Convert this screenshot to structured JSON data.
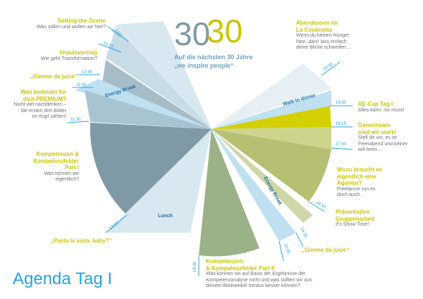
{
  "logo": {
    "left": "30",
    "right": "30"
  },
  "tagline": {
    "line1": "Auf die nächsten 30 Jahre",
    "line2": "„we inspire people“"
  },
  "agenda_title": "Agenda Tag I",
  "colors": {
    "gray_blue": "#7f9aa6",
    "light_blue": "#a9cde0",
    "pale_blue": "#d7e8f1",
    "olive": "#b7bf73",
    "olive_light": "#cfd48c",
    "sage": "#9bb289",
    "lime": "#d4d000",
    "yellow_title": "#c9c400",
    "accent_blue": "#29a3dc"
  },
  "times": [
    "10:00",
    "10:15",
    "10:45",
    "11:00",
    "11:30",
    "13:00",
    "14:30",
    "16:05",
    "16:30",
    "16:50",
    "17:50",
    "18:15",
    "18:30",
    "19:00"
  ],
  "breaks": {
    "energy1": "Energy Break",
    "lunch": "Lunch",
    "energy2": "Energy Break",
    "walk": "Walk to dinner"
  },
  "items": {
    "setting": {
      "title": "Setting-the-Scene",
      "text": "Was sollen und wollen wir hier?"
    },
    "impuls": {
      "title": "Impulsvortrag",
      "text": "Wie geht Transformation?"
    },
    "gimme1": {
      "title": "„Gimme da juice“",
      "text": ""
    },
    "premium": {
      "title": "Was bedeutet für\ndich PREMIUM?",
      "text": "Nicht viel nachdenken –\ndie ersten drei Bilder\nim Kopf zählen!"
    },
    "kompetenzen1": {
      "title": "Kompetenzen &\nKompetenzfelder\nPart I",
      "text": "Was können wir\neigentlich?"
    },
    "pasta": {
      "title": "„Pasta la vista, baby?“",
      "text": ""
    },
    "kompetenzen2": {
      "title": "Kompetenzen\n& Kompetenzfelder Part II",
      "text": "Was können wir auf Basis der Ergebnisse der\nKompetenzanalyse nicht und was sollten wir aus\ndiesem Blickwinkel heraus besser können?"
    },
    "gimme2": {
      "title": "„Gimme da juice“",
      "text": ""
    },
    "praesentation": {
      "title": "Präsentation\nGruppenarbeit",
      "text": "It's Show Time!"
    },
    "agentur": {
      "title": "Wozu braucht es\neigentlich eine\nAgentur?",
      "text": "Freelancer tun es\ndoch auch…"
    },
    "gemeinsam": {
      "title": "Gemeinsam\nsind wir stark!",
      "text": "Stell dir vor, es ist\nFeierabend und keiner\nwill heim…"
    },
    "recap": {
      "title": "RE-Cap Tag I",
      "text": "Alles kann, nix muss!"
    },
    "abendessen": {
      "title": "Abendessen im\nLa Continetta",
      "text": "Wenn du keinen Hunger\nhast, dann lass einfach\ndeine Blicke schweifen…"
    }
  }
}
